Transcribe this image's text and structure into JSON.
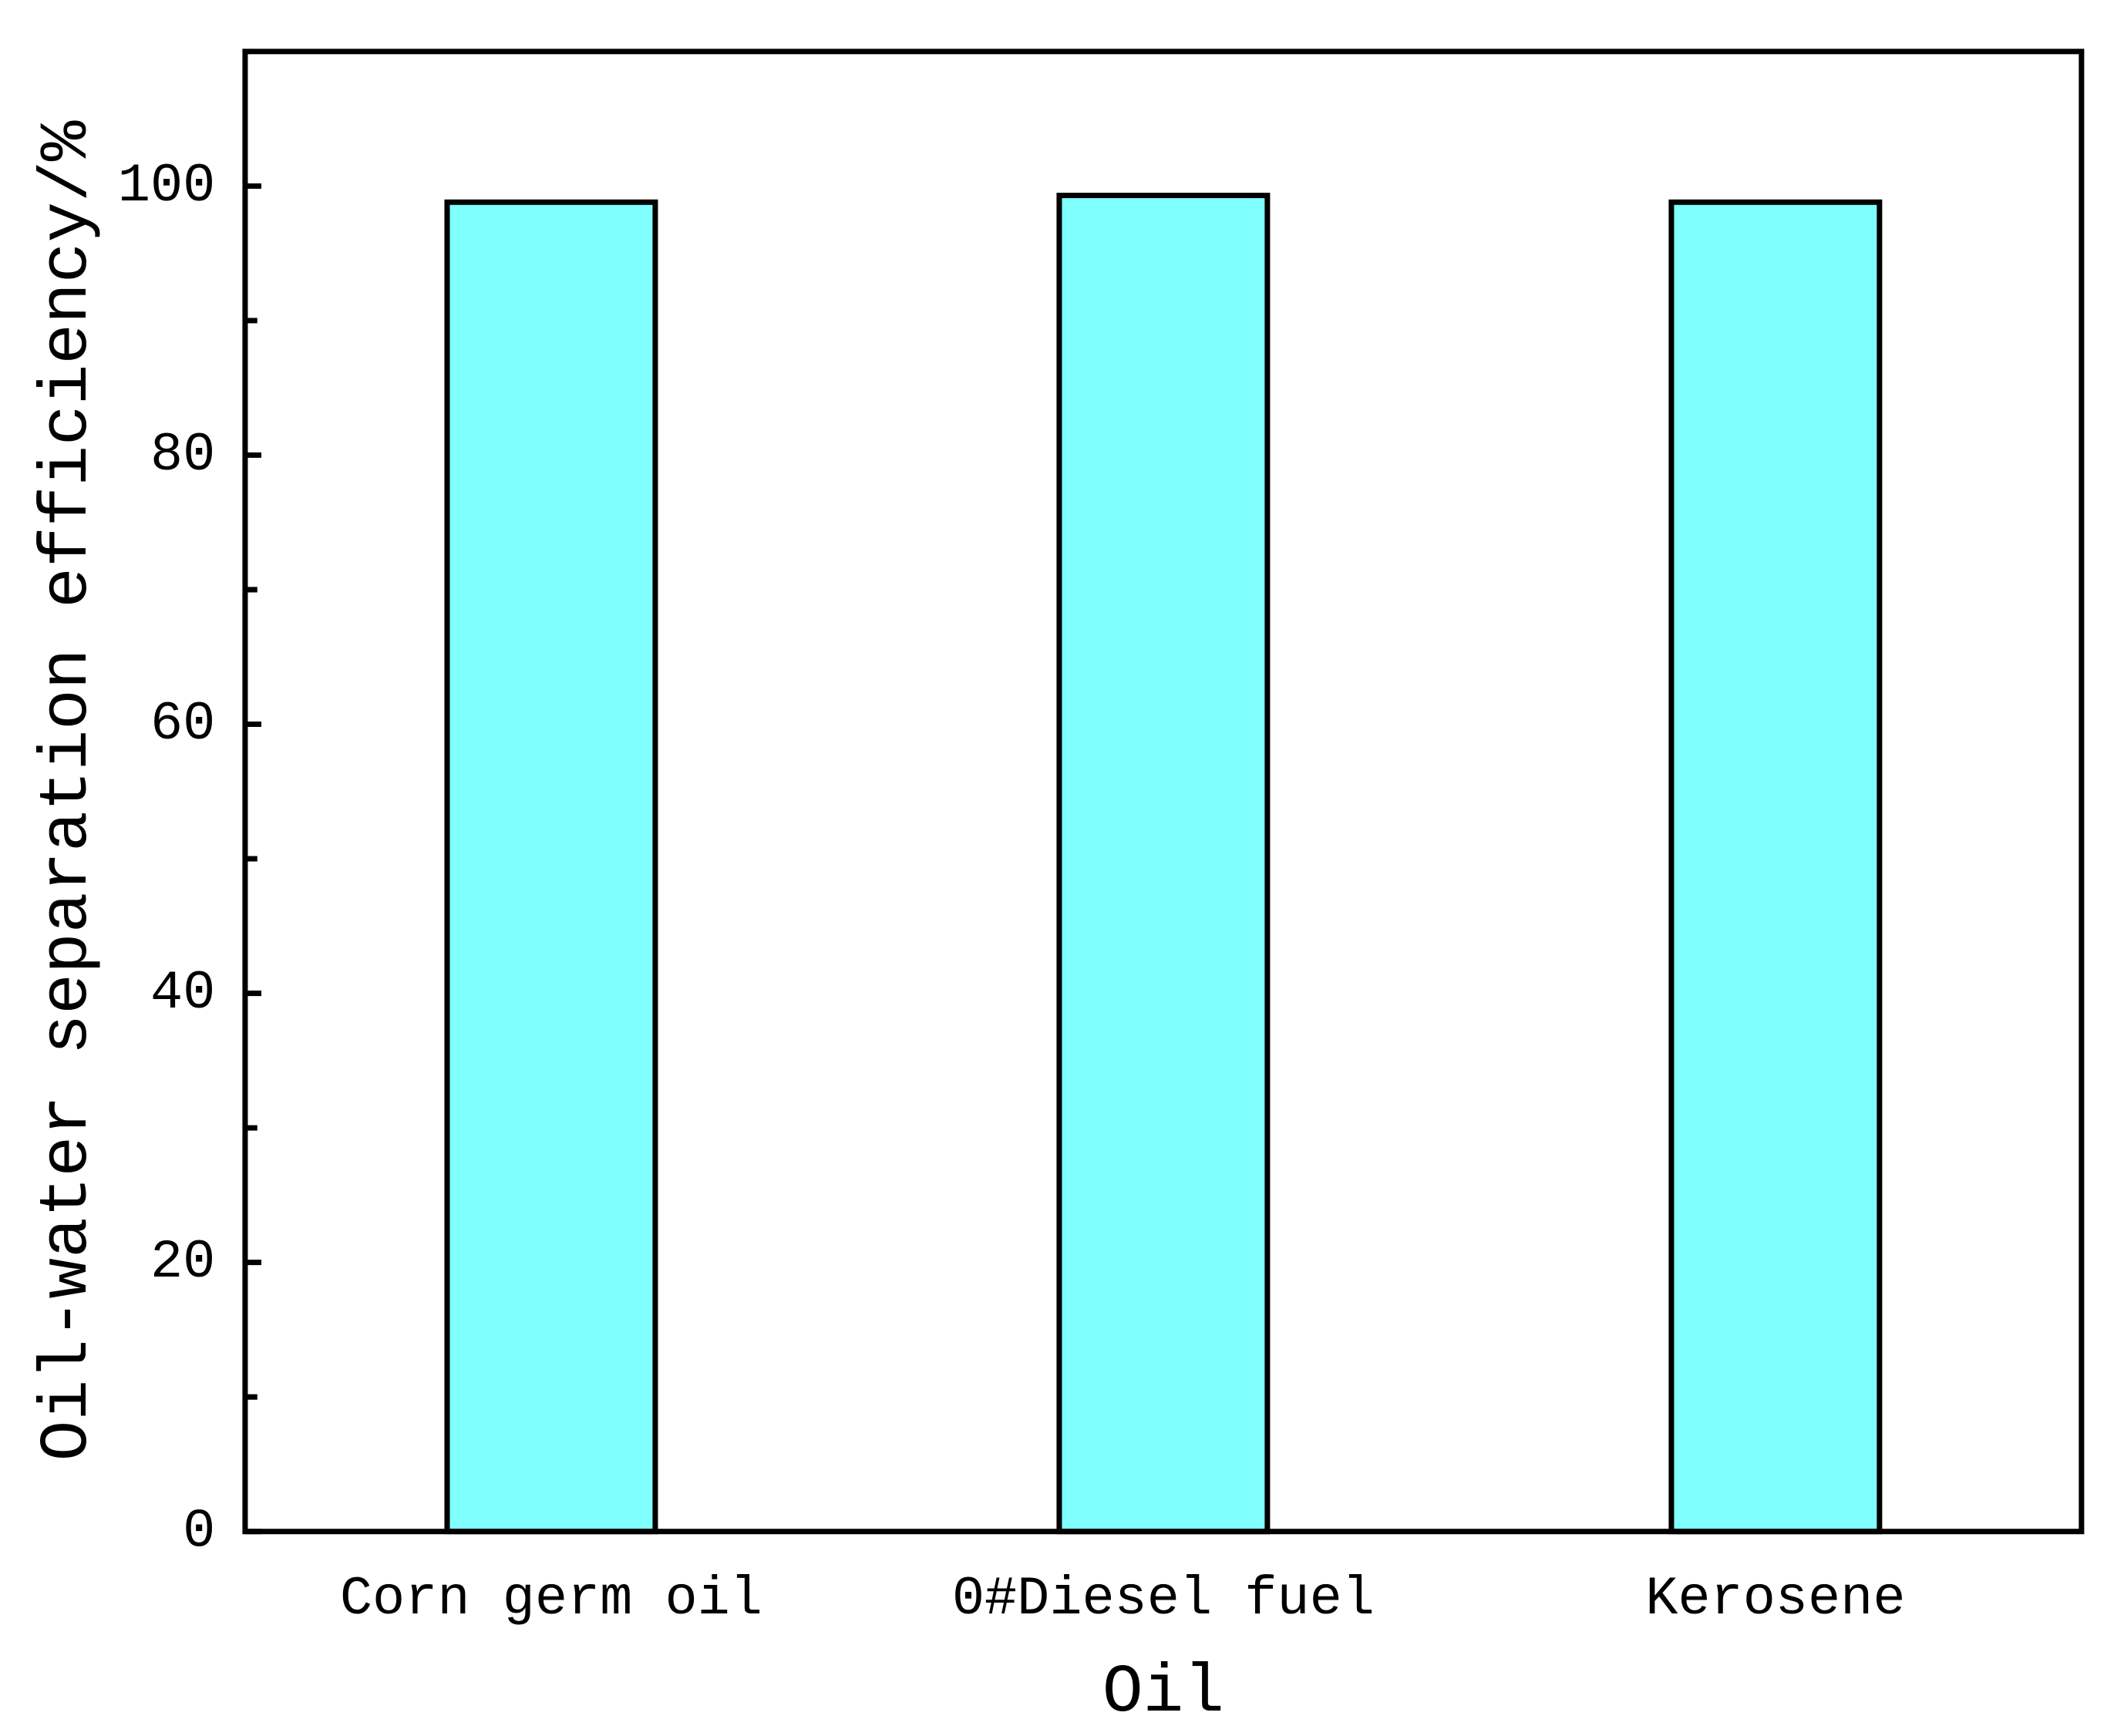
{
  "chart_data": {
    "type": "bar",
    "categories": [
      "Corn germ oil",
      "0#Diesel fuel",
      "Kerosene"
    ],
    "values": [
      98.8,
      99.3,
      98.8
    ],
    "color": "#80ffff",
    "x_label": "Oil",
    "y_label": "Oil-water separation efficiency/%",
    "ylim": [
      0,
      110
    ],
    "yticks": [
      0,
      20,
      40,
      60,
      80,
      100
    ],
    "yminor_ticks": [
      10,
      30,
      50,
      70,
      90
    ],
    "grid": false
  }
}
